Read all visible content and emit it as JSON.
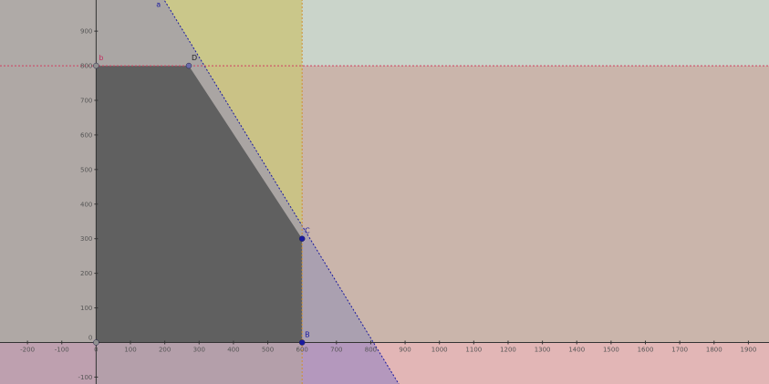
{
  "graphics_view": {
    "x_axis": {
      "min": -280,
      "max": 1960,
      "ticks": [
        -200,
        -100,
        0,
        100,
        200,
        300,
        400,
        500,
        600,
        700,
        800,
        900,
        1000,
        1100,
        1200,
        1300,
        1400,
        1500,
        1600,
        1700,
        1800,
        1900
      ],
      "tick_labels": [
        "-200",
        "-100",
        "0",
        "100",
        "200",
        "300",
        "400",
        "500",
        "600",
        "700",
        "800",
        "900",
        "1000",
        "1100",
        "1200",
        "1300",
        "1400",
        "1500",
        "1600",
        "1700",
        "1800",
        "1900"
      ]
    },
    "y_axis": {
      "min": -120,
      "max": 990,
      "ticks": [
        -100,
        100,
        200,
        300,
        400,
        500,
        600,
        700,
        800,
        900
      ],
      "tick_labels": [
        "-100",
        "100",
        "200",
        "300",
        "400",
        "500",
        "600",
        "700",
        "800",
        "900"
      ],
      "origin_label": "0"
    },
    "grid": false,
    "constraint_lines": [
      {
        "name": "a",
        "label": "a",
        "label_x": 175,
        "label_y": 970,
        "from": [
          100,
          1150
        ],
        "to": [
          900,
          -150
        ],
        "color": "#1a1aa0"
      },
      {
        "name": "horizontal",
        "label": "",
        "from": [
          -280,
          800
        ],
        "to": [
          1960,
          800
        ],
        "color": "#d04060"
      },
      {
        "name": "vertical",
        "label": "",
        "from": [
          600,
          -120
        ],
        "to": [
          600,
          990
        ],
        "color": "#d09030"
      }
    ],
    "regions": [
      {
        "name": "y-below-800",
        "color": "#ff8c8c",
        "opacity": 0.55
      },
      {
        "name": "x-up-to-600",
        "color": "#ffe066",
        "opacity": 0.85
      },
      {
        "name": "line-a-half-plane",
        "color": "#9b7fd0",
        "opacity": 0.65
      },
      {
        "name": "y-above-0",
        "color": "#8fbc8f",
        "opacity": 0.3
      },
      {
        "name": "x-above-0",
        "color": "#a0a0a0",
        "opacity": 0.3
      },
      {
        "name": "feasible-region",
        "color": "#606060",
        "opacity": 1.0
      }
    ],
    "points": [
      {
        "label": "D",
        "x": 270,
        "y": 800,
        "color": "#6a6aa8",
        "label_color": "#222222"
      },
      {
        "label": "C",
        "x": 600,
        "y": 300,
        "color": "#1a1aa0",
        "label_color": "#1a1aa0"
      },
      {
        "label": "B",
        "x": 600,
        "y": 0,
        "color": "#1a1aa0",
        "label_color": "#1a1aa0"
      },
      {
        "label": "b",
        "x": 0,
        "y": 800,
        "color": "#909090",
        "label_color": "#c03060"
      },
      {
        "label": "",
        "x": 0,
        "y": 0,
        "color": "#909090",
        "label_color": "#909090"
      }
    ]
  }
}
